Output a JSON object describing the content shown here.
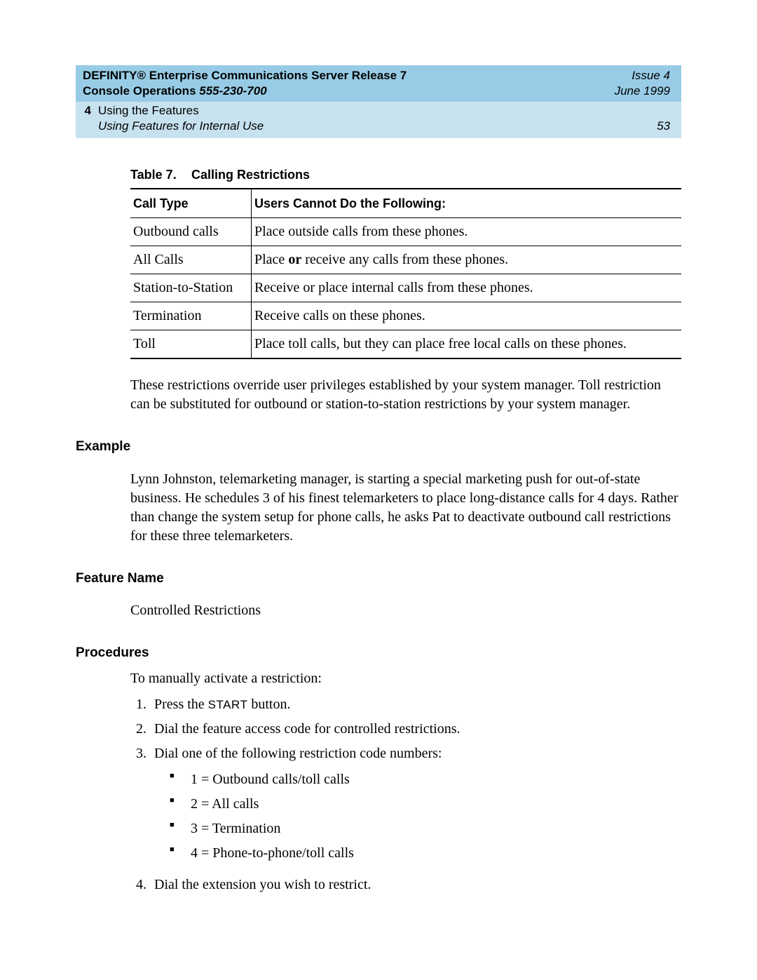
{
  "header": {
    "title_line1": "DEFINITY® Enterprise Communications Server Release 7",
    "title_line2_prefix": "Console Operations  ",
    "doc_number": "555-230-700",
    "issue": "Issue 4",
    "date": "June 1999",
    "chapter_number": "4",
    "chapter_title": "Using the Features",
    "chapter_subtitle": "Using Features for Internal Use",
    "page_number": "53"
  },
  "table": {
    "caption_label": "Table 7.",
    "caption_title": "Calling Restrictions",
    "columns": [
      "Call Type",
      "Users Cannot Do the Following:"
    ],
    "rows": [
      [
        "Outbound calls",
        "Place outside calls from these phones."
      ],
      [
        "All Calls",
        "Place ",
        "or",
        " receive any calls from these phones."
      ],
      [
        "Station-to-Station",
        "Receive or place internal calls from these phones."
      ],
      [
        "Termination",
        "Receive calls on these phones."
      ],
      [
        "Toll",
        "Place toll calls, but they can place free local calls on these phones."
      ]
    ]
  },
  "paragraph_after_table": "These restrictions override user privileges established by your system manager. Toll restriction can be substituted for outbound or station-to-station restrictions by your system manager.",
  "sections": {
    "example": {
      "heading": "Example",
      "body": "Lynn Johnston, telemarketing manager, is starting a special marketing push for out-of-state business. He schedules 3 of his finest telemarketers to place long-distance calls for 4 days. Rather than change the system setup for phone calls, he asks Pat to deactivate outbound call restrictions for these three telemarketers."
    },
    "feature_name": {
      "heading": "Feature Name",
      "body": "Controlled Restrictions"
    },
    "procedures": {
      "heading": "Procedures",
      "intro": "To manually activate a restriction:",
      "steps": [
        {
          "pre": "Press the ",
          "cap": "START",
          "post": " button."
        },
        {
          "text": "Dial the feature access code for controlled restrictions."
        },
        {
          "text": "Dial one of the following restriction code numbers:",
          "sub": [
            "1 = Outbound calls/toll calls",
            "2 = All calls",
            "3 = Termination",
            "4 = Phone-to-phone/toll calls"
          ]
        },
        {
          "text": "Dial the extension you wish to restrict."
        }
      ]
    }
  },
  "colors": {
    "band_bg": "#c7e2ef",
    "band_top_bg": "#98cce6",
    "page_bg": "#ffffff",
    "text": "#000000"
  }
}
